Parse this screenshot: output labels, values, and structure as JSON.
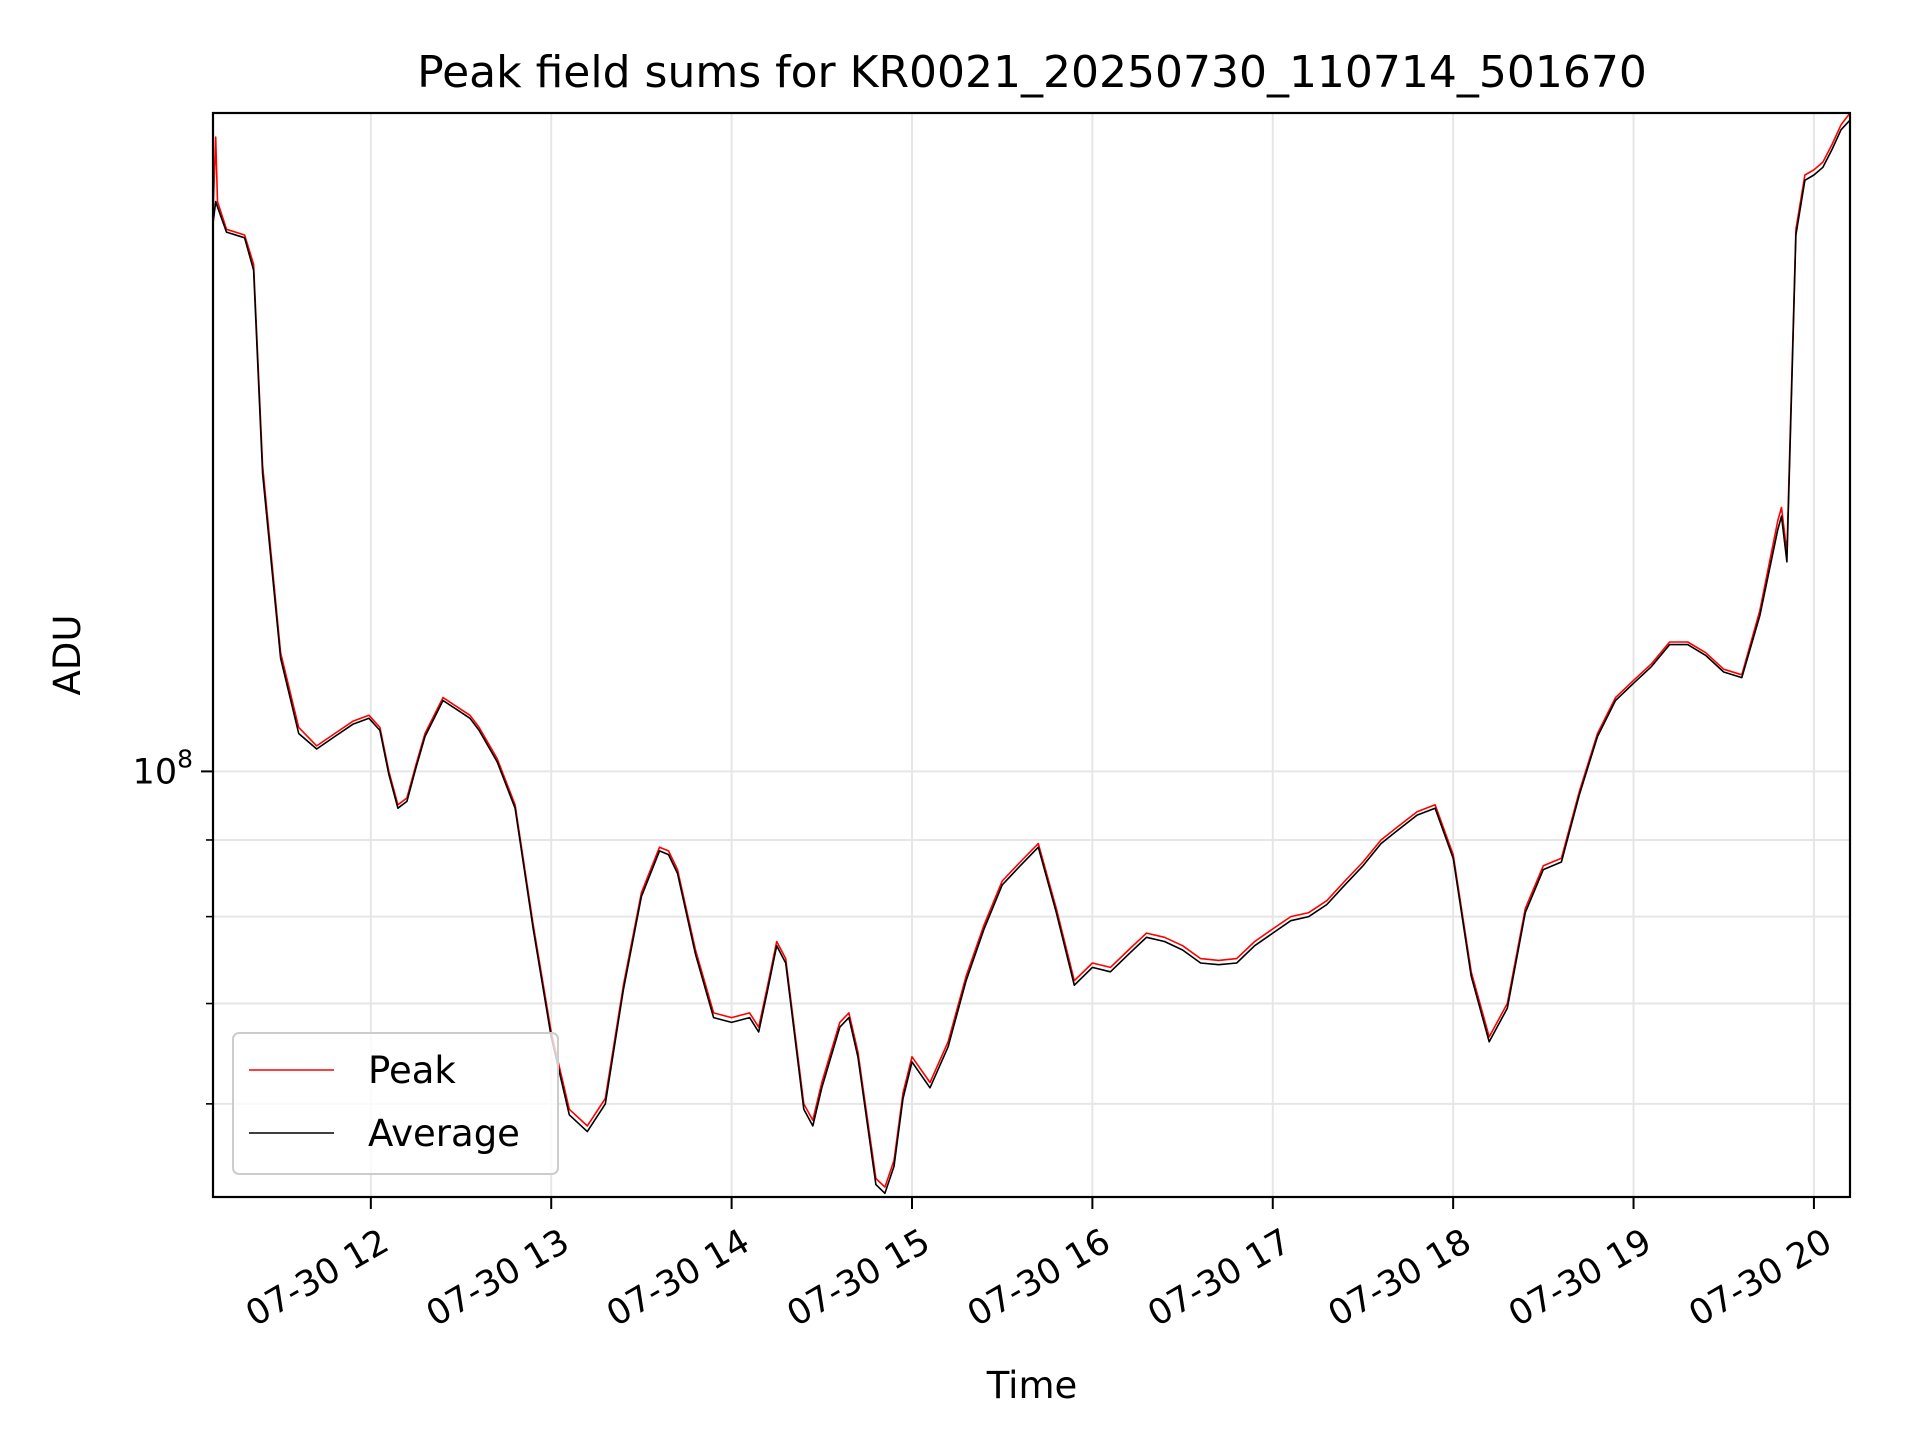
{
  "chart_data": {
    "type": "line",
    "title": "Peak field sums for KR0021_20250730_110714_501670",
    "xlabel": "Time",
    "ylabel": "ADU",
    "x_tick_labels": [
      "07-30 12",
      "07-30 13",
      "07-30 14",
      "07-30 15",
      "07-30 16",
      "07-30 17",
      "07-30 18",
      "07-30 19",
      "07-30 20"
    ],
    "x_tick_hours": [
      12,
      13,
      14,
      15,
      16,
      17,
      18,
      19,
      20
    ],
    "xlim_hours": [
      11.125,
      20.2
    ],
    "y_scale": "log",
    "y_major_tick": {
      "base": "10",
      "exponent": "8",
      "value": 100000000
    },
    "y_minor_ticks": [
      60000000,
      70000000,
      80000000,
      90000000
    ],
    "ylim": [
      52000000,
      275000000
    ],
    "grid": true,
    "legend_position": "lower-left",
    "series": [
      {
        "name": "Peak",
        "color": "#ff0000",
        "x_hours": [
          11.125,
          11.14,
          11.15,
          11.2,
          11.3,
          11.35,
          11.4,
          11.5,
          11.6,
          11.7,
          11.8,
          11.9,
          11.99,
          12.05,
          12.1,
          12.15,
          12.2,
          12.25,
          12.3,
          12.4,
          12.5,
          12.55,
          12.6,
          12.7,
          12.8,
          12.9,
          13.0,
          13.1,
          13.2,
          13.3,
          13.4,
          13.5,
          13.6,
          13.65,
          13.7,
          13.8,
          13.9,
          14.0,
          14.1,
          14.15,
          14.2,
          14.25,
          14.3,
          14.4,
          14.45,
          14.5,
          14.6,
          14.65,
          14.7,
          14.8,
          14.85,
          14.9,
          14.95,
          15.0,
          15.1,
          15.2,
          15.3,
          15.4,
          15.5,
          15.6,
          15.7,
          15.8,
          15.9,
          16.0,
          16.1,
          16.2,
          16.3,
          16.4,
          16.5,
          16.6,
          16.7,
          16.8,
          16.9,
          17.0,
          17.1,
          17.2,
          17.3,
          17.4,
          17.5,
          17.6,
          17.7,
          17.8,
          17.9,
          18.0,
          18.1,
          18.2,
          18.3,
          18.4,
          18.5,
          18.6,
          18.7,
          18.8,
          18.9,
          19.0,
          19.1,
          19.2,
          19.3,
          19.4,
          19.5,
          19.6,
          19.7,
          19.8,
          19.82,
          19.85,
          19.9,
          19.95,
          20.0,
          20.05,
          20.1,
          20.15,
          20.2
        ],
        "y": [
          235000000,
          265000000,
          240000000,
          230000000,
          228000000,
          218000000,
          160000000,
          120000000,
          107000000,
          104000000,
          106000000,
          108000000,
          109000000,
          107000000,
          100000000,
          95000000,
          96000000,
          101000000,
          106000000,
          112000000,
          110000000,
          109000000,
          107000000,
          102000000,
          95000000,
          79000000,
          67000000,
          59500000,
          58000000,
          60500000,
          72000000,
          83000000,
          89000000,
          88500000,
          86000000,
          76000000,
          69000000,
          68500000,
          69000000,
          67500000,
          72000000,
          77000000,
          75000000,
          60000000,
          58500000,
          62000000,
          68000000,
          69000000,
          65000000,
          53500000,
          52800000,
          55000000,
          61000000,
          64500000,
          62000000,
          66000000,
          73000000,
          79000000,
          84500000,
          87000000,
          89500000,
          81000000,
          72500000,
          74500000,
          74000000,
          76000000,
          78000000,
          77500000,
          76500000,
          75000000,
          74800000,
          75000000,
          77000000,
          78500000,
          80000000,
          80500000,
          82000000,
          84500000,
          87000000,
          90000000,
          92000000,
          94000000,
          95000000,
          88000000,
          73500000,
          66500000,
          70000000,
          81000000,
          86500000,
          87500000,
          97000000,
          106000000,
          112000000,
          115000000,
          118000000,
          122000000,
          122000000,
          120000000,
          117000000,
          116000000,
          128000000,
          147000000,
          150000000,
          140000000,
          230000000,
          250000000,
          252000000,
          255000000,
          262000000,
          270000000,
          275000000
        ]
      },
      {
        "name": "Average",
        "color": "#000000",
        "x_hours": [
          11.125,
          11.14,
          11.15,
          11.2,
          11.3,
          11.35,
          11.4,
          11.5,
          11.6,
          11.7,
          11.8,
          11.9,
          11.99,
          12.05,
          12.1,
          12.15,
          12.2,
          12.25,
          12.3,
          12.4,
          12.5,
          12.55,
          12.6,
          12.7,
          12.8,
          12.9,
          13.0,
          13.1,
          13.2,
          13.3,
          13.4,
          13.5,
          13.6,
          13.65,
          13.7,
          13.8,
          13.9,
          14.0,
          14.1,
          14.15,
          14.2,
          14.25,
          14.3,
          14.4,
          14.45,
          14.5,
          14.6,
          14.65,
          14.7,
          14.8,
          14.85,
          14.9,
          14.95,
          15.0,
          15.1,
          15.2,
          15.3,
          15.4,
          15.5,
          15.6,
          15.7,
          15.8,
          15.9,
          16.0,
          16.1,
          16.2,
          16.3,
          16.4,
          16.5,
          16.6,
          16.7,
          16.8,
          16.9,
          17.0,
          17.1,
          17.2,
          17.3,
          17.4,
          17.5,
          17.6,
          17.7,
          17.8,
          17.9,
          18.0,
          18.1,
          18.2,
          18.3,
          18.4,
          18.5,
          18.6,
          18.7,
          18.8,
          18.9,
          19.0,
          19.1,
          19.2,
          19.3,
          19.4,
          19.5,
          19.6,
          19.7,
          19.8,
          19.82,
          19.85,
          19.9,
          19.95,
          20.0,
          20.05,
          20.1,
          20.15,
          20.2
        ],
        "y": [
          232000000,
          240000000,
          238000000,
          229000000,
          227000000,
          216000000,
          158000000,
          119000000,
          106000000,
          103500000,
          105500000,
          107500000,
          108500000,
          106500000,
          99500000,
          94500000,
          95500000,
          100500000,
          105500000,
          111500000,
          109500000,
          108500000,
          106500000,
          101500000,
          94500000,
          78500000,
          66500000,
          59000000,
          57500000,
          60000000,
          71500000,
          82500000,
          88500000,
          88000000,
          85500000,
          75500000,
          68500000,
          68000000,
          68500000,
          67000000,
          71500000,
          76500000,
          74500000,
          59500000,
          58000000,
          61500000,
          67500000,
          68500000,
          64500000,
          53000000,
          52300000,
          54500000,
          60500000,
          64000000,
          61500000,
          65500000,
          72500000,
          78500000,
          84000000,
          86500000,
          89000000,
          80500000,
          72000000,
          74000000,
          73500000,
          75500000,
          77500000,
          77000000,
          76000000,
          74500000,
          74300000,
          74500000,
          76500000,
          78000000,
          79500000,
          80000000,
          81500000,
          84000000,
          86500000,
          89500000,
          91500000,
          93500000,
          94500000,
          87500000,
          73000000,
          66000000,
          69500000,
          80500000,
          86000000,
          87000000,
          96500000,
          105500000,
          111500000,
          114500000,
          117500000,
          121500000,
          121500000,
          119500000,
          116500000,
          115500000,
          127000000,
          145000000,
          148000000,
          138000000,
          228000000,
          248000000,
          250000000,
          253000000,
          260000000,
          268000000,
          272000000
        ]
      }
    ]
  }
}
